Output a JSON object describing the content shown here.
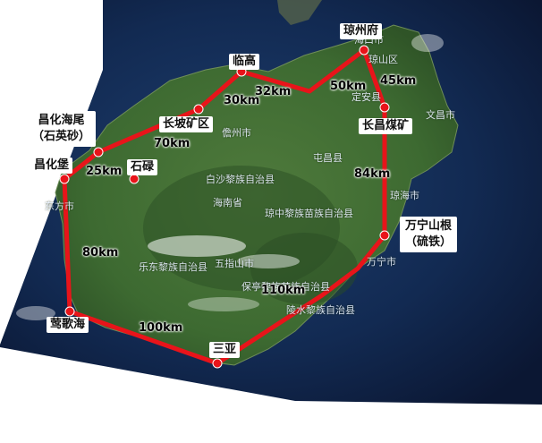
{
  "colors": {
    "route": "#e8141a",
    "sea_dark": "#0b1733",
    "land": "#3f6b33",
    "label_bg": "#ffffff"
  },
  "sites": [
    {
      "id": "qiongzhou",
      "label": "琼州府"
    },
    {
      "id": "lingao",
      "label": "临高"
    },
    {
      "id": "changpo",
      "label": "长坡矿区"
    },
    {
      "id": "changhua_haiwei",
      "label_line1": "昌化海尾",
      "label_line2": "（石英砂）"
    },
    {
      "id": "changhuabao",
      "label": "昌化堡"
    },
    {
      "id": "shilu",
      "label": "石碌"
    },
    {
      "id": "changchang",
      "label": "长昌煤矿"
    },
    {
      "id": "wanning",
      "label_line1": "万宁山根",
      "label_line2": "（硫铁）"
    },
    {
      "id": "yingge",
      "label": "莺歌海"
    },
    {
      "id": "sanya",
      "label": "三亚"
    }
  ],
  "distances": [
    {
      "id": "d1",
      "text": "30km"
    },
    {
      "id": "d2",
      "text": "32km"
    },
    {
      "id": "d3",
      "text": "50km"
    },
    {
      "id": "d4",
      "text": "45km"
    },
    {
      "id": "d5",
      "text": "70km"
    },
    {
      "id": "d6",
      "text": "25km"
    },
    {
      "id": "d7",
      "text": "84km"
    },
    {
      "id": "d8",
      "text": "80km"
    },
    {
      "id": "d9",
      "text": "110km"
    },
    {
      "id": "d10",
      "text": "100km"
    }
  ],
  "map_labels": [
    {
      "id": "haikou",
      "text": "海口市"
    },
    {
      "id": "qiongshan",
      "text": "琼山区"
    },
    {
      "id": "dingan",
      "text": "定安县"
    },
    {
      "id": "wenchang",
      "text": "文昌市"
    },
    {
      "id": "danzhou",
      "text": "儋州市"
    },
    {
      "id": "tunchang",
      "text": "屯昌县"
    },
    {
      "id": "baisha",
      "text": "白沙黎族自治县"
    },
    {
      "id": "dongfang",
      "text": "东方市"
    },
    {
      "id": "qiongzhong",
      "text": "琼中黎族苗族自治县"
    },
    {
      "id": "wuzhishan",
      "text": "五指山市"
    },
    {
      "id": "ledong",
      "text": "乐东黎族自治县"
    },
    {
      "id": "baoting",
      "text": "保亭黎族苗族自治县"
    },
    {
      "id": "lingshui",
      "text": "陵水黎族自治县"
    },
    {
      "id": "wanning_city",
      "text": "万宁市"
    },
    {
      "id": "qionghai",
      "text": "琼海市"
    },
    {
      "id": "haixi",
      "text": "海南省"
    }
  ]
}
